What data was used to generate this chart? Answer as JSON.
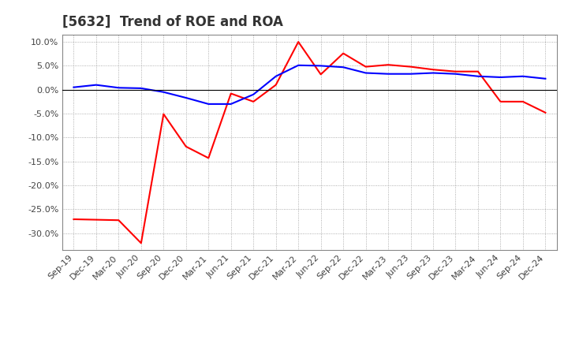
{
  "title": "[5632]  Trend of ROE and ROA",
  "ylim": [
    -0.335,
    0.115
  ],
  "yticks": [
    -0.3,
    -0.25,
    -0.2,
    -0.15,
    -0.1,
    -0.05,
    0.0,
    0.05,
    0.1
  ],
  "x_labels": [
    "Sep-19",
    "Dec-19",
    "Mar-20",
    "Jun-20",
    "Sep-20",
    "Dec-20",
    "Mar-21",
    "Jun-21",
    "Sep-21",
    "Dec-21",
    "Mar-22",
    "Jun-22",
    "Sep-22",
    "Dec-22",
    "Mar-23",
    "Jun-23",
    "Sep-23",
    "Dec-23",
    "Mar-24",
    "Jun-24",
    "Sep-24",
    "Dec-24"
  ],
  "roe": [
    -0.271,
    -0.272,
    -0.273,
    -0.321,
    -0.051,
    -0.119,
    -0.143,
    -0.008,
    -0.025,
    0.01,
    0.1,
    0.032,
    0.076,
    0.048,
    0.052,
    0.048,
    0.042,
    0.038,
    0.038,
    -0.025,
    -0.025,
    -0.048
  ],
  "roa": [
    0.005,
    0.01,
    0.004,
    0.003,
    -0.005,
    -0.017,
    -0.03,
    -0.03,
    -0.01,
    0.028,
    0.051,
    0.05,
    0.047,
    0.035,
    0.033,
    0.033,
    0.035,
    0.033,
    0.028,
    0.026,
    0.028,
    0.023
  ],
  "roe_color": "#ff0000",
  "roa_color": "#0000ff",
  "background_color": "#ffffff",
  "plot_bg_color": "#ffffff",
  "grid_color": "#aaaaaa",
  "line_width": 1.5,
  "title_fontsize": 12,
  "title_color": "#333333",
  "tick_fontsize": 8,
  "legend_fontsize": 10
}
